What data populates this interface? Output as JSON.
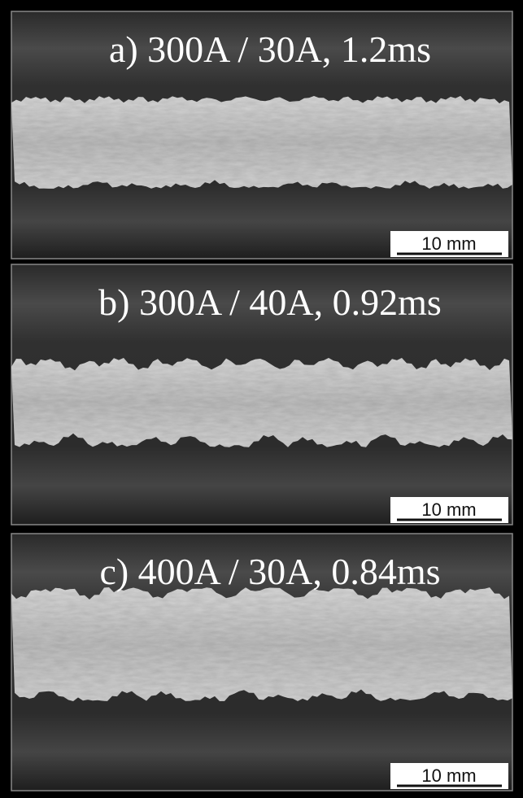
{
  "panels": [
    {
      "label": "a) 300A / 30A, 1.2ms",
      "scale_bar": "10 mm"
    },
    {
      "label": "b) 300A / 40A, 0.92ms",
      "scale_bar": "10 mm"
    },
    {
      "label": "c) 400A / 30A, 0.84ms",
      "scale_bar": "10 mm"
    }
  ]
}
